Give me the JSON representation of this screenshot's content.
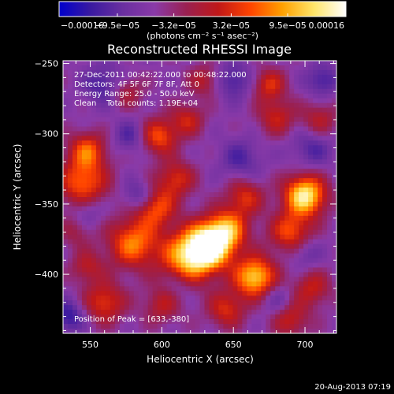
{
  "chart_data": {
    "type": "heatmap",
    "title": "Reconstructed RHESSI Image",
    "xlabel": "Heliocentric X (arcsec)",
    "ylabel": "Heliocentric Y (arcsec)",
    "xlim": [
      531,
      722
    ],
    "ylim": [
      -442,
      -248
    ],
    "x_ticks": [
      {
        "value": 550,
        "label": "550"
      },
      {
        "value": 600,
        "label": "600"
      },
      {
        "value": 650,
        "label": "650"
      },
      {
        "value": 700,
        "label": "700"
      }
    ],
    "y_ticks": [
      {
        "value": -250,
        "label": "−250"
      },
      {
        "value": -300,
        "label": "−300"
      },
      {
        "value": -350,
        "label": "−350"
      },
      {
        "value": -400,
        "label": "−400"
      }
    ],
    "colorbar": {
      "min": -0.00016,
      "max": 0.00016,
      "ticks": [
        {
          "value": -0.00016,
          "label": "−0.00016"
        },
        {
          "value": -9.5e-05,
          "label": "−9.5e−05"
        },
        {
          "value": -3.2e-05,
          "label": "−3.2e−05"
        },
        {
          "value": 3.2e-05,
          "label": "3.2e−05"
        },
        {
          "value": 9.5e-05,
          "label": "9.5e−05"
        },
        {
          "value": 0.00016,
          "label": "0.00016"
        }
      ],
      "unit_label": "(photons cm⁻² s⁻¹ asec⁻²)",
      "stops": [
        "#0000cc",
        "#3a1aa0",
        "#6a2fa0",
        "#8a3aa8",
        "#9a2050",
        "#c01818",
        "#ff4400",
        "#ffa000",
        "#ffe66a",
        "#ffffff"
      ]
    },
    "info_lines": [
      "27-Dec-2011 00:42:22.000 to 00:48:22.000",
      "Detectors: 4F 5F 6F 7F 8F, Att 0",
      "Energy Range: 25.0 - 50.0 keV",
      "Clean    Total counts: 1.19E+04"
    ],
    "peak_label": "Position of Peak = [633,-380]",
    "peak": [
      633,
      -380
    ],
    "sources": [
      {
        "x": 633,
        "y": -380,
        "amp": 1.0,
        "r": 11
      },
      {
        "x": 700,
        "y": -344,
        "amp": 0.9,
        "r": 10
      },
      {
        "x": 665,
        "y": -402,
        "amp": 0.8,
        "r": 10
      },
      {
        "x": 618,
        "y": -388,
        "amp": 0.7,
        "r": 13
      },
      {
        "x": 646,
        "y": -368,
        "amp": 0.6,
        "r": 10
      },
      {
        "x": 545,
        "y": -335,
        "amp": 0.55,
        "r": 12
      },
      {
        "x": 548,
        "y": -312,
        "amp": 0.5,
        "r": 9
      },
      {
        "x": 580,
        "y": -378,
        "amp": 0.6,
        "r": 12
      },
      {
        "x": 595,
        "y": -352,
        "amp": 0.55,
        "r": 10
      },
      {
        "x": 610,
        "y": -332,
        "amp": 0.4,
        "r": 9
      },
      {
        "x": 598,
        "y": -302,
        "amp": 0.5,
        "r": 9
      },
      {
        "x": 618,
        "y": -290,
        "amp": 0.35,
        "r": 8
      },
      {
        "x": 630,
        "y": -262,
        "amp": 0.3,
        "r": 8
      },
      {
        "x": 680,
        "y": -288,
        "amp": 0.35,
        "r": 9
      },
      {
        "x": 675,
        "y": -265,
        "amp": 0.4,
        "r": 8
      },
      {
        "x": 710,
        "y": -290,
        "amp": 0.3,
        "r": 9
      },
      {
        "x": 705,
        "y": -410,
        "amp": 0.35,
        "r": 9
      },
      {
        "x": 690,
        "y": -370,
        "amp": 0.5,
        "r": 10
      },
      {
        "x": 658,
        "y": -345,
        "amp": 0.4,
        "r": 9
      },
      {
        "x": 560,
        "y": -420,
        "amp": 0.45,
        "r": 10
      },
      {
        "x": 600,
        "y": -422,
        "amp": 0.3,
        "r": 9
      },
      {
        "x": 645,
        "y": -425,
        "amp": 0.4,
        "r": 9
      },
      {
        "x": 690,
        "y": -432,
        "amp": 0.35,
        "r": 9
      },
      {
        "x": 575,
        "y": -270,
        "amp": 0.3,
        "r": 8
      },
      {
        "x": 548,
        "y": -395,
        "amp": 0.3,
        "r": 8
      },
      {
        "x": 540,
        "y": -370,
        "amp": 0.2,
        "r": 8
      },
      {
        "x": 560,
        "y": -265,
        "amp": -0.3,
        "r": 10
      },
      {
        "x": 585,
        "y": -345,
        "amp": -0.35,
        "r": 8
      },
      {
        "x": 578,
        "y": -302,
        "amp": -0.25,
        "r": 8
      },
      {
        "x": 650,
        "y": -262,
        "amp": -0.3,
        "r": 9
      },
      {
        "x": 705,
        "y": -310,
        "amp": -0.25,
        "r": 10
      },
      {
        "x": 712,
        "y": -262,
        "amp": -0.3,
        "r": 8
      },
      {
        "x": 655,
        "y": -318,
        "amp": -0.25,
        "r": 10
      },
      {
        "x": 535,
        "y": -430,
        "amp": -0.35,
        "r": 8
      },
      {
        "x": 548,
        "y": -355,
        "amp": -0.2,
        "r": 8
      },
      {
        "x": 680,
        "y": -418,
        "amp": -0.2,
        "r": 8
      },
      {
        "x": 612,
        "y": -408,
        "amp": -0.15,
        "r": 7
      },
      {
        "x": 700,
        "y": -385,
        "amp": -0.2,
        "r": 8
      }
    ]
  },
  "footer": {
    "timestamp": "20-Aug-2013 07:19"
  }
}
